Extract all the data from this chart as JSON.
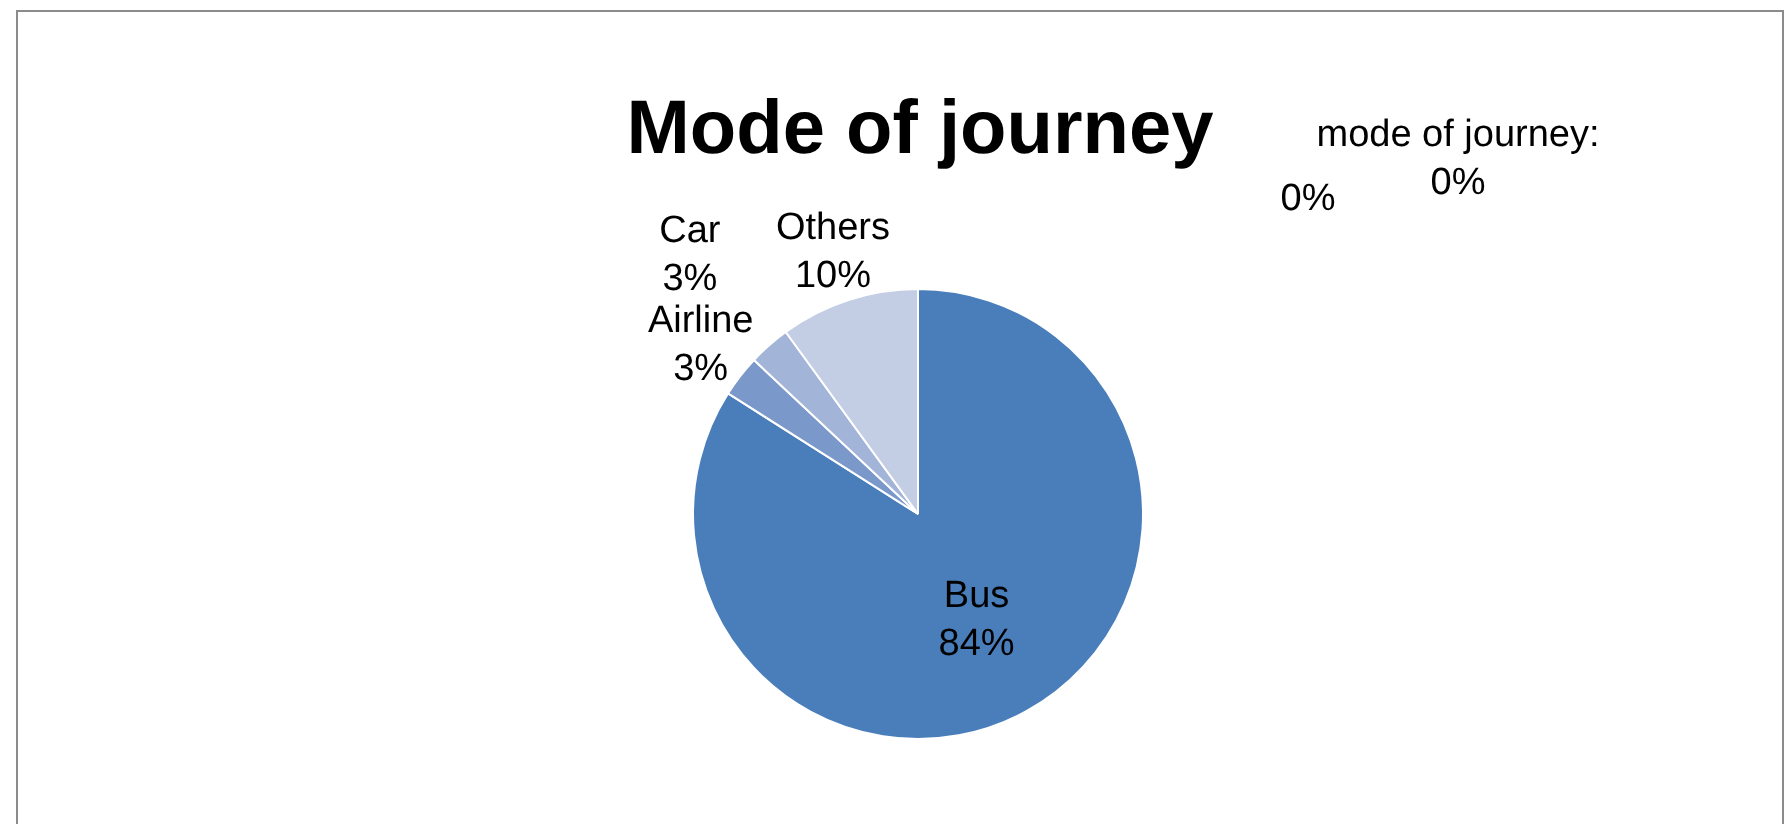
{
  "chart_data": {
    "type": "pie",
    "title": "Mode of journey",
    "categories": [
      "Bus",
      "Airline",
      "Car",
      "Others",
      null,
      "mode of journey"
    ],
    "values": [
      84,
      3,
      3,
      10,
      0,
      0
    ],
    "value_labels": [
      "84%",
      "3%",
      "3%",
      "10%",
      "0%",
      "0%"
    ],
    "colors": [
      "#4a7ebb",
      "#7b98ca",
      "#a2b4d8",
      "#c3cde4",
      "#4a7ebb",
      "#7b98ca"
    ],
    "annotations": [
      ":"
    ],
    "legend": false
  }
}
